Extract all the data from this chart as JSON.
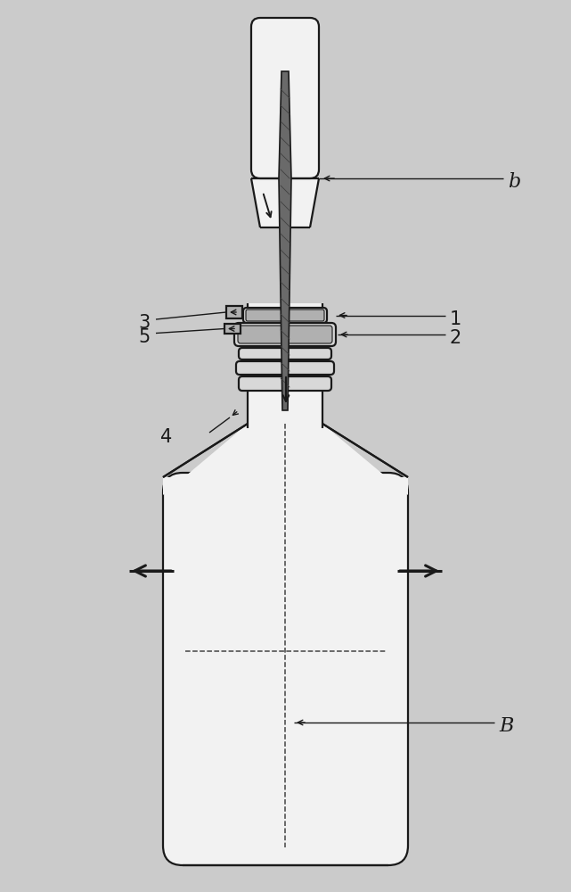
{
  "bg_color": "#cbcbcb",
  "line_color": "#1a1a1a",
  "fill_light": "#f2f2f2",
  "fill_mid": "#d8d8d8",
  "fill_dark": "#b0b0b0",
  "fill_spike": "#808080",
  "label_b": "b",
  "label_B": "B",
  "label_1": "1",
  "label_2": "2",
  "label_3": "3",
  "label_4": "4",
  "label_5": "5",
  "figsize": [
    6.41,
    10.0
  ],
  "dpi": 100
}
